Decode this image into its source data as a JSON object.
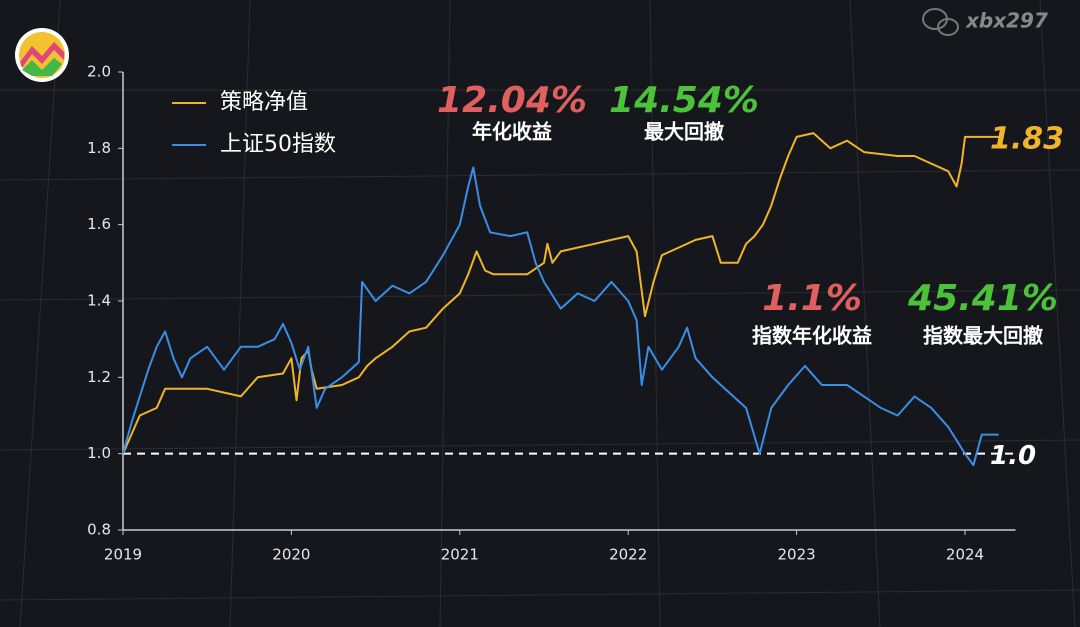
{
  "watermark": "xbx297",
  "chart_data": {
    "type": "line",
    "xlim": [
      2019,
      2024.3
    ],
    "xticks": [
      2019,
      2020,
      2021,
      2022,
      2023,
      2024
    ],
    "ylim": [
      0.8,
      2.0
    ],
    "yticks": [
      {
        "value": 0.8,
        "label": "0.8"
      },
      {
        "value": 1,
        "label": "1.0"
      },
      {
        "value": 1.2,
        "label": "1.2"
      },
      {
        "value": 1.4,
        "label": "1.4"
      },
      {
        "value": 1.6,
        "label": "1.6"
      },
      {
        "value": 1.8,
        "label": "1.8"
      },
      {
        "value": 2,
        "label": "2.0"
      }
    ],
    "grid": false,
    "legend": "upper left",
    "reference_line": {
      "value": 1,
      "label": "1.0"
    },
    "series": [
      {
        "name": "策略净值",
        "color": "#f0b429",
        "end_value": 1.83,
        "x": [
          2019.0,
          2019.05,
          2019.1,
          2019.2,
          2019.25,
          2019.5,
          2019.7,
          2019.8,
          2019.95,
          2020.0,
          2020.03,
          2020.06,
          2020.1,
          2020.12,
          2020.15,
          2020.3,
          2020.4,
          2020.45,
          2020.5,
          2020.6,
          2020.7,
          2020.8,
          2020.9,
          2021.0,
          2021.05,
          2021.1,
          2021.15,
          2021.2,
          2021.4,
          2021.5,
          2021.52,
          2021.55,
          2021.6,
          2021.8,
          2021.9,
          2022.0,
          2022.05,
          2022.1,
          2022.15,
          2022.2,
          2022.3,
          2022.4,
          2022.5,
          2022.55,
          2022.65,
          2022.7,
          2022.75,
          2022.8,
          2022.85,
          2022.9,
          2022.95,
          2023.0,
          2023.1,
          2023.2,
          2023.3,
          2023.4,
          2023.6,
          2023.7,
          2023.8,
          2023.9,
          2023.95,
          2023.98,
          2024.0,
          2024.1,
          2024.2
        ],
        "values": [
          1.0,
          1.05,
          1.1,
          1.12,
          1.17,
          1.17,
          1.15,
          1.2,
          1.21,
          1.25,
          1.14,
          1.25,
          1.27,
          1.22,
          1.17,
          1.18,
          1.2,
          1.23,
          1.25,
          1.28,
          1.32,
          1.33,
          1.38,
          1.42,
          1.47,
          1.53,
          1.48,
          1.47,
          1.47,
          1.5,
          1.55,
          1.5,
          1.53,
          1.55,
          1.56,
          1.57,
          1.53,
          1.36,
          1.45,
          1.52,
          1.54,
          1.56,
          1.57,
          1.5,
          1.5,
          1.55,
          1.57,
          1.6,
          1.65,
          1.72,
          1.78,
          1.83,
          1.84,
          1.8,
          1.82,
          1.79,
          1.78,
          1.78,
          1.76,
          1.74,
          1.7,
          1.76,
          1.83,
          1.83,
          1.83
        ]
      },
      {
        "name": "上证50指数",
        "color": "#3a8ee6",
        "x": [
          2019.0,
          2019.05,
          2019.1,
          2019.15,
          2019.2,
          2019.25,
          2019.3,
          2019.35,
          2019.4,
          2019.5,
          2019.6,
          2019.7,
          2019.8,
          2019.9,
          2019.95,
          2020.0,
          2020.05,
          2020.1,
          2020.15,
          2020.2,
          2020.3,
          2020.35,
          2020.4,
          2020.42,
          2020.5,
          2020.6,
          2020.7,
          2020.8,
          2020.9,
          2021.0,
          2021.05,
          2021.08,
          2021.12,
          2021.18,
          2021.3,
          2021.4,
          2021.45,
          2021.5,
          2021.6,
          2021.7,
          2021.8,
          2021.9,
          2022.0,
          2022.05,
          2022.08,
          2022.12,
          2022.2,
          2022.3,
          2022.35,
          2022.4,
          2022.5,
          2022.6,
          2022.7,
          2022.78,
          2022.85,
          2022.95,
          2023.05,
          2023.15,
          2023.3,
          2023.4,
          2023.5,
          2023.6,
          2023.7,
          2023.8,
          2023.9,
          2024.0,
          2024.05,
          2024.1,
          2024.2
        ],
        "values": [
          1.0,
          1.08,
          1.15,
          1.22,
          1.28,
          1.32,
          1.25,
          1.2,
          1.25,
          1.28,
          1.22,
          1.28,
          1.28,
          1.3,
          1.34,
          1.29,
          1.22,
          1.28,
          1.12,
          1.17,
          1.2,
          1.22,
          1.24,
          1.45,
          1.4,
          1.44,
          1.42,
          1.45,
          1.52,
          1.6,
          1.7,
          1.75,
          1.65,
          1.58,
          1.57,
          1.58,
          1.5,
          1.45,
          1.38,
          1.42,
          1.4,
          1.45,
          1.4,
          1.35,
          1.18,
          1.28,
          1.22,
          1.28,
          1.33,
          1.25,
          1.2,
          1.16,
          1.12,
          1.0,
          1.12,
          1.18,
          1.23,
          1.18,
          1.18,
          1.15,
          1.12,
          1.1,
          1.15,
          1.12,
          1.07,
          1.0,
          0.97,
          1.05,
          1.05
        ]
      }
    ],
    "stats": [
      {
        "value": "12.04%",
        "label": "年化收益",
        "color": "#e06060"
      },
      {
        "value": "14.54%",
        "label": "最大回撤",
        "color": "#4cc23a"
      },
      {
        "value": "1.1%",
        "label": "指数年化收益",
        "color": "#e06060"
      },
      {
        "value": "45.41%",
        "label": "指数最大回撤",
        "color": "#4cc23a"
      }
    ]
  }
}
